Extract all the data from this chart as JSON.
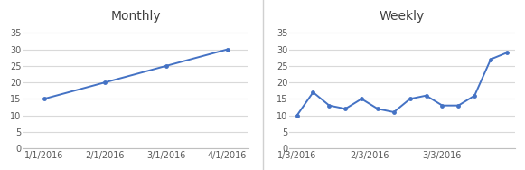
{
  "monthly": {
    "title": "Monthly",
    "x_labels": [
      "1/1/2016",
      "2/1/2016",
      "3/1/2016",
      "4/1/2016"
    ],
    "x_values": [
      0,
      1,
      2,
      3
    ],
    "y_values": [
      15,
      20,
      25,
      30
    ],
    "ylim": [
      0,
      37
    ],
    "yticks": [
      0,
      5,
      10,
      15,
      20,
      25,
      30,
      35
    ],
    "xlim": [
      -0.35,
      3.35
    ]
  },
  "weekly": {
    "title": "Weekly",
    "x_labels": [
      "1/3/2016",
      "2/3/2016",
      "3/3/2016"
    ],
    "x_tick_positions": [
      0,
      4.5,
      9
    ],
    "y_values": [
      10,
      17,
      13,
      12,
      15,
      12,
      11,
      15,
      16,
      13,
      13,
      16,
      27,
      29
    ],
    "ylim": [
      0,
      37
    ],
    "yticks": [
      0,
      5,
      10,
      15,
      20,
      25,
      30,
      35
    ],
    "xlim": [
      -0.5,
      13.5
    ]
  },
  "line_color": "#4472C4",
  "marker": "o",
  "marker_size": 3.5,
  "line_width": 1.4,
  "background_color": "#ffffff",
  "outer_background": "#f2f2f2",
  "grid_color": "#d9d9d9",
  "title_fontsize": 10,
  "tick_fontsize": 7,
  "tick_color": "#595959",
  "border_color": "#d0d0d0"
}
